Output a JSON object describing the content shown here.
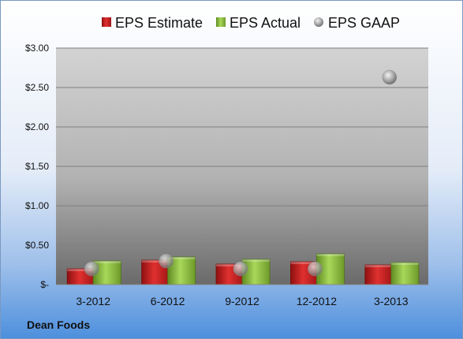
{
  "company": "Dean Foods",
  "colors": {
    "estimate": "#c82020",
    "actual": "#8cc040",
    "gaap": "#a8a8a8"
  },
  "chart_data": {
    "type": "bar",
    "categories": [
      "3-2012",
      "6-2012",
      "9-2012",
      "12-2012",
      "3-2013"
    ],
    "series": [
      {
        "name": "EPS Estimate",
        "values": [
          0.2,
          0.31,
          0.26,
          0.29,
          0.25
        ]
      },
      {
        "name": "EPS Actual",
        "values": [
          0.3,
          0.35,
          0.32,
          0.39,
          0.28
        ]
      },
      {
        "name": "EPS GAAP",
        "type": "scatter",
        "values": [
          0.2,
          0.3,
          0.2,
          0.2,
          2.63
        ]
      }
    ],
    "ylim": [
      0,
      3.0
    ],
    "yticks": [
      0,
      0.5,
      1.0,
      1.5,
      2.0,
      2.5,
      3.0
    ],
    "ytick_labels": [
      "$-",
      "$0.50",
      "$1.00",
      "$1.50",
      "$2.00",
      "$2.50",
      "$3.00"
    ],
    "grid": true,
    "legend_position": "top"
  }
}
